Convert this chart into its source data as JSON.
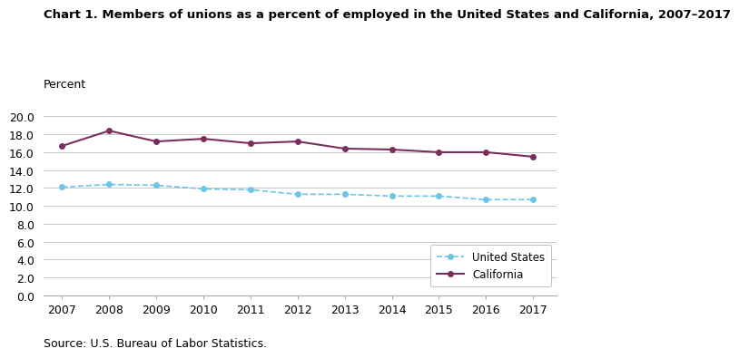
{
  "title": "Chart 1. Members of unions as a percent of employed in the United States and California, 2007–2017",
  "ylabel": "Percent",
  "source": "Source: U.S. Bureau of Labor Statistics.",
  "years": [
    2007,
    2008,
    2009,
    2010,
    2011,
    2012,
    2013,
    2014,
    2015,
    2016,
    2017
  ],
  "us_values": [
    12.1,
    12.4,
    12.3,
    11.9,
    11.8,
    11.3,
    11.3,
    11.1,
    11.1,
    10.7,
    10.7
  ],
  "ca_values": [
    16.7,
    18.4,
    17.2,
    17.5,
    17.0,
    17.2,
    16.4,
    16.3,
    16.0,
    16.0,
    15.5
  ],
  "us_color": "#6ec6e6",
  "ca_color": "#7B2D5E",
  "us_label": "United States",
  "ca_label": "California",
  "ylim": [
    0,
    21.0
  ],
  "yticks": [
    0.0,
    2.0,
    4.0,
    6.0,
    8.0,
    10.0,
    12.0,
    14.0,
    16.0,
    18.0,
    20.0
  ],
  "background_color": "#ffffff",
  "grid_color": "#c8c8c8",
  "title_fontsize": 9.5,
  "label_fontsize": 9,
  "tick_fontsize": 9,
  "legend_fontsize": 8.5,
  "source_fontsize": 9
}
